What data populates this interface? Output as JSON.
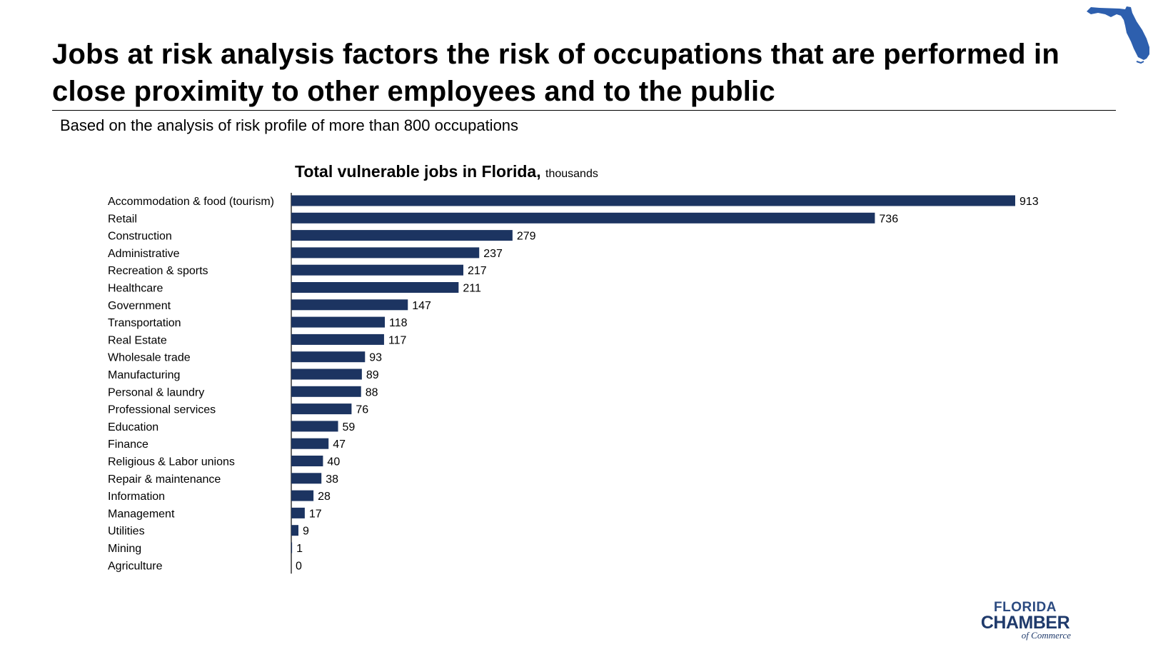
{
  "page": {
    "title": "Jobs at risk analysis factors the risk of occupations that are performed in close proximity to other employees and to the public",
    "subtitle": "Based on the analysis of risk profile of more than 800 occupations"
  },
  "logo": {
    "line1": "FLORIDA",
    "line2": "CHAMBER",
    "line3": "of Commerce"
  },
  "colors": {
    "bar": "#1c3461",
    "map": "#2d5fae",
    "logo": "#1f3a6b"
  },
  "icons": {
    "map": "florida-map-icon"
  },
  "chart_data": {
    "type": "bar",
    "orientation": "horizontal",
    "title": "Total vulnerable jobs in Florida,",
    "title_unit": "thousands",
    "categories": [
      "Accommodation & food (tourism)",
      "Retail",
      "Construction",
      "Administrative",
      "Recreation & sports",
      "Healthcare",
      "Government",
      "Transportation",
      "Real Estate",
      "Wholesale trade",
      "Manufacturing",
      "Personal & laundry",
      "Professional services",
      "Education",
      "Finance",
      "Religious & Labor unions",
      "Repair & maintenance",
      "Information",
      "Management",
      "Utilities",
      "Mining",
      "Agriculture"
    ],
    "values": [
      913,
      736,
      279,
      237,
      217,
      211,
      147,
      118,
      117,
      93,
      89,
      88,
      76,
      59,
      47,
      40,
      38,
      28,
      17,
      9,
      1,
      0
    ],
    "xlim": [
      0,
      913
    ],
    "data_labels": true,
    "grid": false,
    "legend": "none"
  }
}
